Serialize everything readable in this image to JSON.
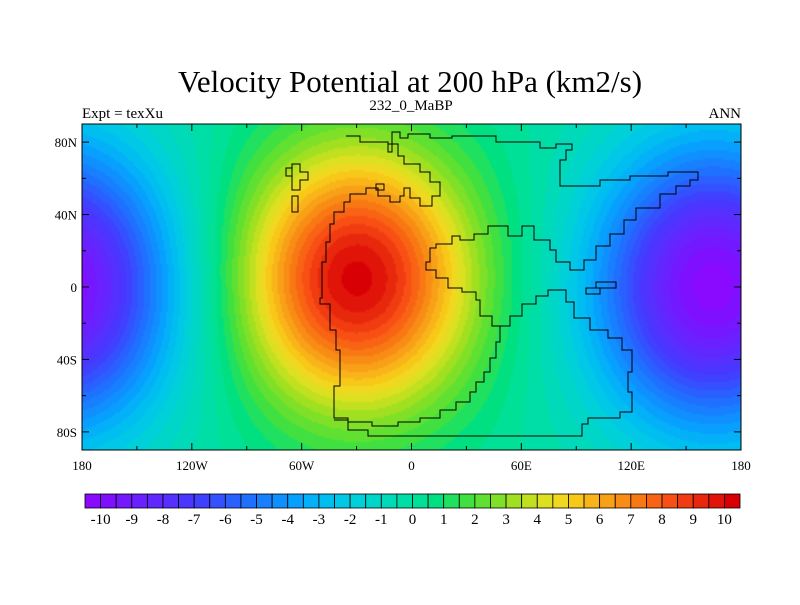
{
  "title": "Velocity Potential at 200 hPa (km2/s)",
  "left_label": "Expt = texXu",
  "center_label": "232_0_MaBP",
  "right_label": "ANN",
  "map_data": {
    "type": "filled-contour-map",
    "projection": "cylindrical-equidistant",
    "lon_range": [
      -180,
      180
    ],
    "lat_range": [
      -90,
      90
    ],
    "x_tick_labels": [
      "180",
      "120W",
      "60W",
      "0",
      "60E",
      "120E",
      "180"
    ],
    "y_tick_labels": [
      "80N",
      "40N",
      "0",
      "40S",
      "80S"
    ],
    "field_features": [
      {
        "name": "max",
        "lon": -30,
        "lat": 5,
        "value": 10.2
      },
      {
        "name": "min-east",
        "lon": 165,
        "lat": 0,
        "value": -10.3
      },
      {
        "name": "min-west-edge",
        "lon": -180,
        "lat": 0,
        "value": -10.3
      }
    ]
  },
  "colorbar": {
    "labels": [
      "-10",
      "-9",
      "-8",
      "-7",
      "-6",
      "-5",
      "-4",
      "-3",
      "-2",
      "-1",
      "0",
      "1",
      "2",
      "3",
      "4",
      "5",
      "6",
      "7",
      "8",
      "9",
      "10"
    ],
    "levels": [
      -10,
      -9.5,
      -9,
      -8.5,
      -8,
      -7.5,
      -7,
      -6.5,
      -6,
      -5.5,
      -5,
      -4.5,
      -4,
      -3.5,
      -3,
      -2.5,
      -2,
      -1.5,
      -1,
      -0.5,
      0,
      0.5,
      1,
      1.5,
      2,
      2.5,
      3,
      3.5,
      4,
      4.5,
      5,
      5.5,
      6,
      6.5,
      7,
      7.5,
      8,
      8.5,
      9,
      9.5,
      10
    ],
    "colors": [
      "#8a0aff",
      "#7f10ff",
      "#7418ff",
      "#6a20ff",
      "#6028ff",
      "#5530ff",
      "#4a36ff",
      "#4040ff",
      "#3550ff",
      "#2a60ff",
      "#2070ff",
      "#1880ff",
      "#1090ff",
      "#08a0ff",
      "#04b0f8",
      "#00bef0",
      "#00c8e6",
      "#00d0d8",
      "#00d6c8",
      "#00dab8",
      "#00dea8",
      "#00e096",
      "#00e080",
      "#20e060",
      "#40e040",
      "#60e030",
      "#80e028",
      "#a0e020",
      "#c0e020",
      "#dce020",
      "#f0d820",
      "#f8c818",
      "#f8b418",
      "#f8a018",
      "#f88c14",
      "#f87814",
      "#f86414",
      "#f85014",
      "#f03c10",
      "#e8280c",
      "#e01408",
      "#d80004"
    ]
  }
}
